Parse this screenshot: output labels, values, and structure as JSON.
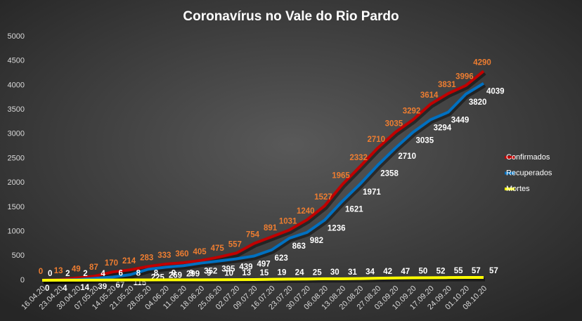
{
  "chart_data": {
    "type": "line",
    "title": "Coronavírus  no Vale do Rio Pardo",
    "categories": [
      "16.04.20",
      "23.04.20",
      "30.04.20",
      "07.05.20",
      "14.05.20",
      "21.05.20",
      "28.05.20",
      "04.06.20",
      "11.06.20",
      "18.06.20",
      "25.06.20",
      "02.07.20",
      "09.07.20",
      "16.07.20",
      "23.07.20",
      "30.07.20",
      "06.08.20",
      "13.08.20",
      "20.08.20",
      "27.08.20",
      "03.09.20",
      "10.09.20",
      "17.09.20",
      "24.09.20",
      "01.10.20",
      "08.10.20"
    ],
    "series": [
      {
        "name": "Confirmados",
        "color": "#c00000",
        "label_color": "#ed7d31",
        "values": [
          0,
          13,
          49,
          87,
          170,
          214,
          283,
          333,
          360,
          405,
          475,
          557,
          754,
          891,
          1031,
          1240,
          1527,
          1965,
          2332,
          2710,
          3035,
          3292,
          3614,
          3831,
          3996,
          4290
        ]
      },
      {
        "name": "Recuperados",
        "color": "#0070c0",
        "label_color": "#ffffff",
        "values": [
          0,
          4,
          14,
          39,
          67,
          115,
          225,
          269,
          299,
          352,
          395,
          439,
          497,
          623,
          863,
          982,
          1236,
          1621,
          1971,
          2358,
          2710,
          3035,
          3294,
          3449,
          3820,
          4039
        ]
      },
      {
        "name": "Mortes",
        "color": "#ffff00",
        "label_color": "#ffffff",
        "values": [
          0,
          2,
          2,
          4,
          6,
          8,
          8,
          9,
          9,
          9,
          10,
          13,
          15,
          19,
          24,
          25,
          30,
          31,
          34,
          42,
          47,
          50,
          52,
          55,
          57,
          57
        ]
      }
    ],
    "ylim": [
      0,
      5000
    ],
    "yticks": [
      0,
      500,
      1000,
      1500,
      2000,
      2500,
      3000,
      3500,
      4000,
      4500,
      5000
    ],
    "grid": false,
    "legend": "right"
  }
}
